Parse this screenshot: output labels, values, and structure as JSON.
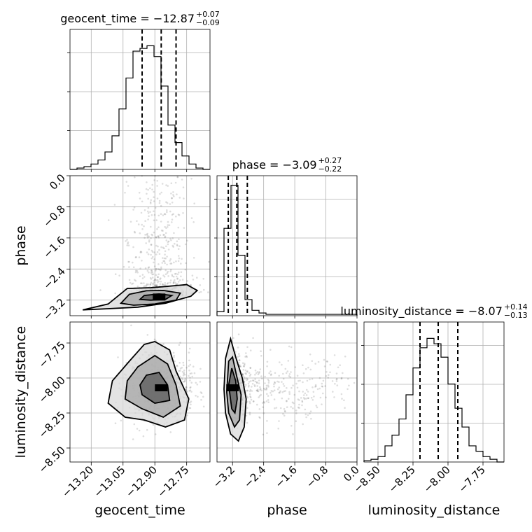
{
  "chart_data": {
    "type": "corner",
    "parameters": [
      {
        "name": "geocent_time",
        "median": -12.87,
        "plus": "0.07",
        "minus": "0.09",
        "median_text": "-12.87",
        "range": [
          -13.3,
          -12.64
        ]
      },
      {
        "name": "phase",
        "median": -3.09,
        "plus": "0.27",
        "minus": "0.22",
        "median_text": "-3.09",
        "range": [
          -3.6,
          0.0
        ]
      },
      {
        "name": "luminosity_distance",
        "median": -8.07,
        "plus": "0.14",
        "minus": "0.13",
        "median_text": "-8.07",
        "range": [
          -8.6,
          -7.6
        ]
      }
    ],
    "titles": [
      {
        "param": "geocent_time",
        "main": "geocent_time = −12.87",
        "sup": "+0.07",
        "sub": "−0.09"
      },
      {
        "param": "phase",
        "main": "phase = −3.09",
        "sup": "+0.27",
        "sub": "−0.22"
      },
      {
        "param": "luminosity_distance",
        "main": "luminosity_distance = −8.07",
        "sup": "+0.14",
        "sub": "−0.13"
      }
    ],
    "axis_labels": [
      "geocent_time",
      "phase",
      "luminosity_distance"
    ],
    "x_ticks": {
      "geocent_time": [
        {
          "value": -13.2,
          "label": "−13.20"
        },
        {
          "value": -13.05,
          "label": "−13.05"
        },
        {
          "value": -12.9,
          "label": "−12.90"
        },
        {
          "value": -12.75,
          "label": "−12.75"
        }
      ],
      "phase": [
        {
          "value": -3.2,
          "label": "−3.2"
        },
        {
          "value": -2.4,
          "label": "−2.4"
        },
        {
          "value": -1.6,
          "label": "−1.6"
        },
        {
          "value": -0.8,
          "label": "−0.8"
        },
        {
          "value": 0.0,
          "label": "0.0"
        }
      ],
      "luminosity_distance": [
        {
          "value": -8.5,
          "label": "−8.50"
        },
        {
          "value": -8.25,
          "label": "−8.25"
        },
        {
          "value": -8.0,
          "label": "−8.00"
        },
        {
          "value": -7.75,
          "label": "−7.75"
        }
      ]
    },
    "y_ticks": {
      "phase": [
        {
          "value": 0.0,
          "label": "0.0"
        },
        {
          "value": -0.8,
          "label": "−0.8"
        },
        {
          "value": -1.6,
          "label": "−1.6"
        },
        {
          "value": -2.4,
          "label": "−2.4"
        },
        {
          "value": -3.2,
          "label": "−3.2"
        }
      ],
      "luminosity_distance": [
        {
          "value": -7.75,
          "label": "−7.75"
        },
        {
          "value": -8.0,
          "label": "−8.00"
        },
        {
          "value": -8.25,
          "label": "−8.25"
        },
        {
          "value": -8.5,
          "label": "−8.50"
        }
      ]
    },
    "histograms": {
      "geocent_time": {
        "start": -13.3,
        "bin_width": 0.033,
        "counts": [
          0,
          0.01,
          0.02,
          0.04,
          0.07,
          0.13,
          0.25,
          0.45,
          0.68,
          0.88,
          0.9,
          0.92,
          0.84,
          0.62,
          0.33,
          0.2,
          0.1,
          0.04,
          0.01,
          0.0
        ]
      },
      "phase": {
        "start": -3.6,
        "bin_width": 0.18,
        "counts": [
          0.03,
          0.65,
          0.97,
          0.45,
          0.12,
          0.04,
          0.02,
          0.01,
          0.01,
          0.01,
          0.01,
          0.01,
          0.01,
          0.01,
          0.01,
          0.01,
          0.01,
          0.01,
          0.01,
          0.01
        ]
      },
      "luminosity_distance": {
        "start": -8.6,
        "bin_width": 0.05,
        "counts": [
          0.01,
          0.02,
          0.04,
          0.12,
          0.2,
          0.32,
          0.5,
          0.7,
          0.85,
          0.92,
          0.88,
          0.78,
          0.58,
          0.4,
          0.26,
          0.12,
          0.08,
          0.04,
          0.02,
          0.0
        ]
      }
    },
    "quantile_lines": {
      "geocent_time": [
        -12.96,
        -12.87,
        -12.8
      ],
      "phase": [
        -3.31,
        -3.09,
        -2.82
      ],
      "luminosity_distance": [
        -8.2,
        -8.07,
        -7.93
      ]
    },
    "density_panels": [
      {
        "x": "geocent_time",
        "y": "phase",
        "contours": [
          [
            [
              -13.24,
              -3.45
            ],
            [
              -13.12,
              -3.3
            ],
            [
              -13.03,
              -2.9
            ],
            [
              -12.92,
              -2.88
            ],
            [
              -12.85,
              -2.85
            ],
            [
              -12.75,
              -2.8
            ],
            [
              -12.7,
              -2.95
            ],
            [
              -12.73,
              -3.1
            ],
            [
              -12.85,
              -3.28
            ],
            [
              -12.98,
              -3.38
            ],
            [
              -13.12,
              -3.42
            ],
            [
              -13.24,
              -3.45
            ]
          ],
          [
            [
              -13.06,
              -3.28
            ],
            [
              -13.02,
              -3.05
            ],
            [
              -12.94,
              -2.96
            ],
            [
              -12.86,
              -2.95
            ],
            [
              -12.78,
              -3.02
            ],
            [
              -12.8,
              -3.2
            ],
            [
              -12.9,
              -3.3
            ],
            [
              -13.0,
              -3.33
            ],
            [
              -13.06,
              -3.28
            ]
          ],
          [
            [
              -12.97,
              -3.18
            ],
            [
              -12.95,
              -3.08
            ],
            [
              -12.88,
              -3.04
            ],
            [
              -12.82,
              -3.08
            ],
            [
              -12.85,
              -3.18
            ],
            [
              -12.92,
              -3.2
            ],
            [
              -12.97,
              -3.18
            ]
          ]
        ],
        "peak": [
          -12.88,
          -3.12
        ]
      },
      {
        "x": "geocent_time",
        "y": "luminosity_distance",
        "contours": [
          [
            [
              -13.02,
              -7.88
            ],
            [
              -12.95,
              -7.76
            ],
            [
              -12.9,
              -7.74
            ],
            [
              -12.83,
              -7.8
            ],
            [
              -12.8,
              -7.95
            ],
            [
              -12.74,
              -8.15
            ],
            [
              -12.76,
              -8.3
            ],
            [
              -12.85,
              -8.35
            ],
            [
              -12.95,
              -8.3
            ],
            [
              -13.04,
              -8.28
            ],
            [
              -13.12,
              -8.18
            ],
            [
              -13.1,
              -8.02
            ],
            [
              -13.02,
              -7.88
            ]
          ],
          [
            [
              -12.98,
              -7.92
            ],
            [
              -12.9,
              -7.84
            ],
            [
              -12.84,
              -7.9
            ],
            [
              -12.8,
              -8.05
            ],
            [
              -12.78,
              -8.2
            ],
            [
              -12.86,
              -8.28
            ],
            [
              -12.96,
              -8.22
            ],
            [
              -13.04,
              -8.15
            ],
            [
              -13.03,
              -8.02
            ],
            [
              -12.98,
              -7.92
            ]
          ],
          [
            [
              -12.94,
              -7.98
            ],
            [
              -12.88,
              -7.96
            ],
            [
              -12.84,
              -8.05
            ],
            [
              -12.83,
              -8.16
            ],
            [
              -12.9,
              -8.18
            ],
            [
              -12.96,
              -8.12
            ],
            [
              -12.97,
              -8.05
            ],
            [
              -12.94,
              -7.98
            ]
          ]
        ],
        "peak": [
          -12.87,
          -8.07
        ]
      },
      {
        "x": "phase",
        "y": "luminosity_distance",
        "contours": [
          [
            [
              -3.42,
              -8.08
            ],
            [
              -3.38,
              -7.86
            ],
            [
              -3.25,
              -7.72
            ],
            [
              -3.12,
              -7.85
            ],
            [
              -2.95,
              -8.0
            ],
            [
              -2.85,
              -8.15
            ],
            [
              -2.9,
              -8.35
            ],
            [
              -3.05,
              -8.45
            ],
            [
              -3.25,
              -8.4
            ],
            [
              -3.38,
              -8.25
            ],
            [
              -3.42,
              -8.08
            ]
          ],
          [
            [
              -3.35,
              -8.1
            ],
            [
              -3.3,
              -7.88
            ],
            [
              -3.2,
              -7.85
            ],
            [
              -3.1,
              -7.98
            ],
            [
              -2.98,
              -8.12
            ],
            [
              -3.02,
              -8.3
            ],
            [
              -3.15,
              -8.35
            ],
            [
              -3.3,
              -8.25
            ],
            [
              -3.35,
              -8.1
            ]
          ],
          [
            [
              -3.3,
              -8.05
            ],
            [
              -3.22,
              -7.93
            ],
            [
              -3.12,
              -8.02
            ],
            [
              -3.08,
              -8.15
            ],
            [
              -3.14,
              -8.25
            ],
            [
              -3.22,
              -8.22
            ],
            [
              -3.3,
              -8.05
            ]
          ]
        ],
        "peak": [
          -3.2,
          -8.07
        ]
      }
    ]
  }
}
